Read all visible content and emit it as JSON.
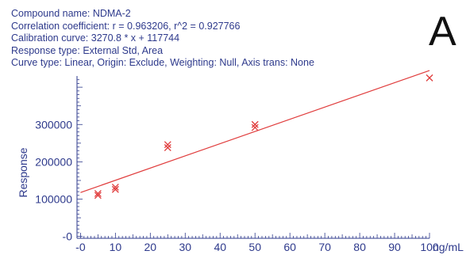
{
  "info": {
    "line1": "Compound name: NDMA-2",
    "line2": "Correlation coefficient: r = 0.963206, r^2 = 0.927766",
    "line3": "Calibration curve: 3270.8 * x + 117744",
    "line4": "Response type: External Std, Area",
    "line5": "Curve type: Linear, Origin: Exclude, Weighting: Null, Axis trans: None"
  },
  "panel_letter": "A",
  "chart_data": {
    "type": "scatter",
    "ylabel": "Response",
    "xlabel": "ng/mL",
    "xlim": [
      -1,
      100
    ],
    "ylim": [
      -5000,
      430000
    ],
    "x_ticks": [
      0,
      10,
      20,
      30,
      40,
      50,
      60,
      70,
      80,
      90,
      100
    ],
    "x_tick_labels": [
      "-0",
      "10",
      "20",
      "30",
      "40",
      "50",
      "60",
      "70",
      "80",
      "90",
      "100"
    ],
    "y_ticks": [
      0,
      100000,
      200000,
      300000
    ],
    "y_tick_labels": [
      "-0",
      "100000",
      "200000",
      "300000"
    ],
    "points": [
      {
        "x": 5,
        "y": 110000
      },
      {
        "x": 5,
        "y": 115000
      },
      {
        "x": 10,
        "y": 126000
      },
      {
        "x": 10,
        "y": 132000
      },
      {
        "x": 25,
        "y": 238000
      },
      {
        "x": 25,
        "y": 246000
      },
      {
        "x": 50,
        "y": 292000
      },
      {
        "x": 50,
        "y": 300000
      },
      {
        "x": 100,
        "y": 425000
      }
    ],
    "fit": {
      "slope": 3270.8,
      "intercept": 117744
    },
    "colors": {
      "points": "#e03c3c",
      "fit": "#e03c3c",
      "axis": "#2e3a8c",
      "text": "#2e3a8c"
    }
  }
}
